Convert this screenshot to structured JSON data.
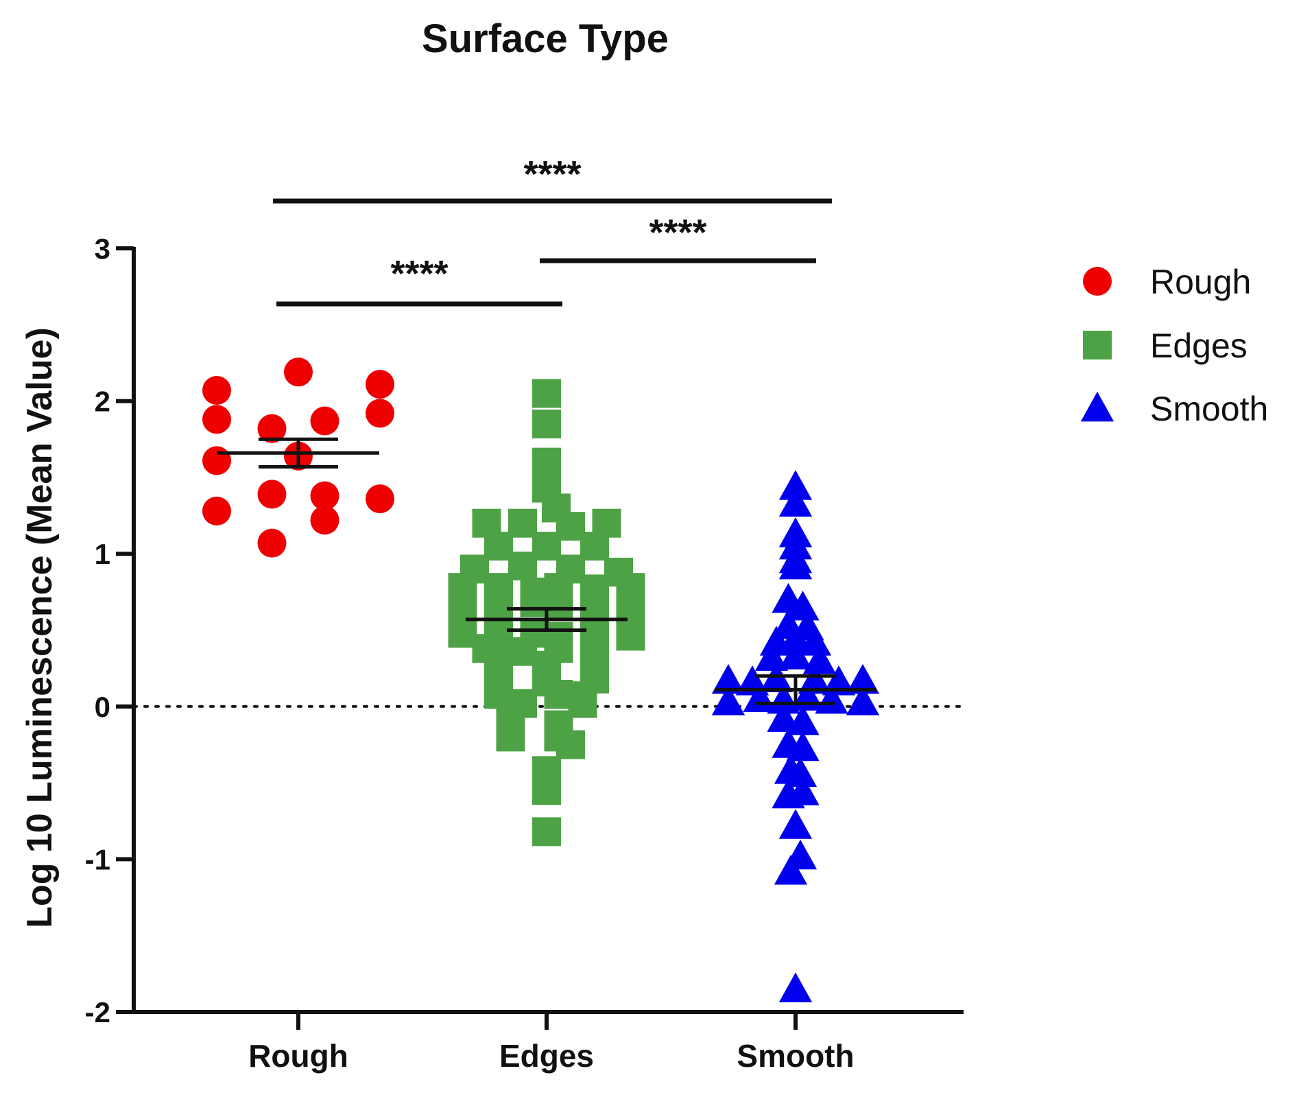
{
  "chart_data": {
    "type": "scatter",
    "title": "Surface Type",
    "xlabel": "",
    "ylabel": "Log 10 Luminescence (Mean Value)",
    "ylim": [
      -2,
      3
    ],
    "yticks": [
      "3",
      "2",
      "1",
      "0",
      "-1",
      "-2"
    ],
    "ytick_values": [
      3,
      2,
      1,
      0,
      -1,
      -2
    ],
    "reference_line_y": 0,
    "categories": [
      "Rough",
      "Edges",
      "Smooth"
    ],
    "legend_position": "right",
    "series": [
      {
        "name": "Rough",
        "marker": "circle",
        "color": "#ee0000",
        "mean": 1.66,
        "sem": 0.09,
        "points": [
          [
            -0.34,
            2.07
          ],
          [
            0,
            2.19
          ],
          [
            0.34,
            2.11
          ],
          [
            -0.34,
            1.88
          ],
          [
            -0.11,
            1.82
          ],
          [
            0.11,
            1.87
          ],
          [
            0.34,
            1.92
          ],
          [
            -0.34,
            1.61
          ],
          [
            0,
            1.64
          ],
          [
            -0.34,
            1.28
          ],
          [
            -0.11,
            1.39
          ],
          [
            0.11,
            1.38
          ],
          [
            0.34,
            1.36
          ],
          [
            0.11,
            1.22
          ],
          [
            -0.11,
            1.07
          ]
        ]
      },
      {
        "name": "Edges",
        "marker": "square",
        "color": "#4ea246",
        "mean": 0.57,
        "sem": 0.07,
        "points": [
          [
            0,
            2.05
          ],
          [
            0,
            1.85
          ],
          [
            0,
            1.6
          ],
          [
            0,
            1.43
          ],
          [
            0.04,
            1.3
          ],
          [
            -0.25,
            1.2
          ],
          [
            -0.1,
            1.2
          ],
          [
            0.1,
            1.18
          ],
          [
            0.25,
            1.2
          ],
          [
            -0.2,
            1.05
          ],
          [
            0,
            1.05
          ],
          [
            0.2,
            1.05
          ],
          [
            -0.3,
            0.9
          ],
          [
            -0.1,
            0.92
          ],
          [
            0.1,
            0.9
          ],
          [
            0.3,
            0.88
          ],
          [
            -0.35,
            0.78
          ],
          [
            -0.2,
            0.78
          ],
          [
            -0.05,
            0.75
          ],
          [
            0.05,
            0.78
          ],
          [
            0.2,
            0.77
          ],
          [
            0.35,
            0.78
          ],
          [
            -0.35,
            0.68
          ],
          [
            -0.2,
            0.66
          ],
          [
            -0.05,
            0.68
          ],
          [
            0.05,
            0.66
          ],
          [
            0.2,
            0.68
          ],
          [
            0.35,
            0.66
          ],
          [
            -0.35,
            0.57
          ],
          [
            -0.2,
            0.55
          ],
          [
            0.2,
            0.56
          ],
          [
            0.35,
            0.58
          ],
          [
            -0.35,
            0.48
          ],
          [
            -0.2,
            0.46
          ],
          [
            -0.05,
            0.48
          ],
          [
            0.05,
            0.46
          ],
          [
            0.2,
            0.48
          ],
          [
            0.35,
            0.46
          ],
          [
            -0.25,
            0.38
          ],
          [
            -0.1,
            0.36
          ],
          [
            0.05,
            0.38
          ],
          [
            0.2,
            0.36
          ],
          [
            -0.2,
            0.28
          ],
          [
            0,
            0.27
          ],
          [
            0.2,
            0.26
          ],
          [
            -0.2,
            0.18
          ],
          [
            0,
            0.16
          ],
          [
            0.2,
            0.18
          ],
          [
            -0.2,
            0.08
          ],
          [
            0.05,
            0.08
          ],
          [
            0.15,
            0.07
          ],
          [
            -0.1,
            0.02
          ],
          [
            0.15,
            0.02
          ],
          [
            -0.15,
            -0.1
          ],
          [
            0.05,
            -0.12
          ],
          [
            -0.15,
            -0.2
          ],
          [
            0.05,
            -0.2
          ],
          [
            0.1,
            -0.25
          ],
          [
            0,
            -0.42
          ],
          [
            0,
            -0.55
          ],
          [
            0,
            -0.82
          ]
        ]
      },
      {
        "name": "Smooth",
        "marker": "triangle",
        "color": "#0000ee",
        "mean": 0.11,
        "sem": 0.09,
        "points": [
          [
            0,
            1.44
          ],
          [
            0,
            1.33
          ],
          [
            0,
            1.13
          ],
          [
            0,
            1.05
          ],
          [
            0,
            0.96
          ],
          [
            0,
            0.92
          ],
          [
            -0.03,
            0.7
          ],
          [
            0.03,
            0.65
          ],
          [
            -0.03,
            0.53
          ],
          [
            0.05,
            0.52
          ],
          [
            -0.08,
            0.42
          ],
          [
            0,
            0.44
          ],
          [
            0.08,
            0.42
          ],
          [
            -0.1,
            0.32
          ],
          [
            0,
            0.33
          ],
          [
            0.1,
            0.3
          ],
          [
            -0.28,
            0.17
          ],
          [
            -0.18,
            0.16
          ],
          [
            -0.08,
            0.18
          ],
          [
            0.08,
            0.17
          ],
          [
            0.18,
            0.16
          ],
          [
            0.28,
            0.17
          ],
          [
            -0.28,
            0.03
          ],
          [
            -0.15,
            0.05
          ],
          [
            -0.05,
            0.04
          ],
          [
            0.05,
            0.06
          ],
          [
            0.15,
            0.04
          ],
          [
            0.28,
            0.03
          ],
          [
            -0.05,
            -0.08
          ],
          [
            0.03,
            -0.1
          ],
          [
            -0.03,
            -0.25
          ],
          [
            0.03,
            -0.27
          ],
          [
            -0.02,
            -0.42
          ],
          [
            0.02,
            -0.44
          ],
          [
            -0.03,
            -0.58
          ],
          [
            0.03,
            -0.56
          ],
          [
            0,
            -0.78
          ],
          [
            0.02,
            -0.98
          ],
          [
            -0.02,
            -1.08
          ],
          [
            0,
            -1.85
          ]
        ]
      }
    ],
    "significance": [
      {
        "from": "Rough",
        "to": "Smooth",
        "label": "****"
      },
      {
        "from": "Edges",
        "to": "Smooth",
        "label": "****"
      },
      {
        "from": "Rough",
        "to": "Edges",
        "label": "****"
      }
    ]
  }
}
